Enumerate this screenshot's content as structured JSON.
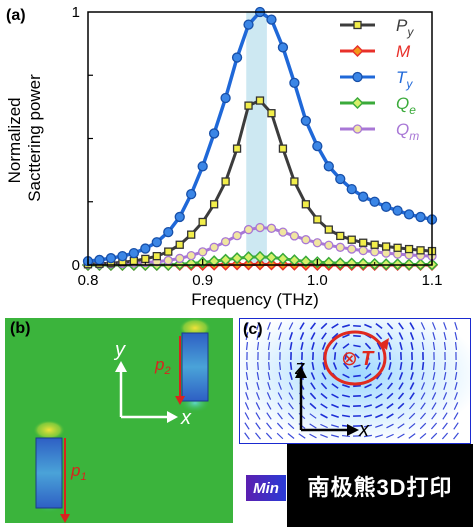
{
  "panels": {
    "a_label": "(a)",
    "b_label": "(b)",
    "c_label": "(c)"
  },
  "panel_b": {
    "p1_label": "p",
    "p1_sub": "1",
    "p2_label": "p",
    "p2_sub": "2",
    "axis_x": "x",
    "axis_y": "y"
  },
  "panel_c": {
    "axis_x": "x",
    "axis_z": "z",
    "toroidal_symbol": "⊗",
    "toroidal_label": "T"
  },
  "colorbar": {
    "min_label": "Min"
  },
  "watermark": "南极熊3D打印",
  "chart_data": {
    "type": "line",
    "xlabel": "Frequency (THz)",
    "ylabel": "Normalized Sacttering power",
    "xlim": [
      0.8,
      1.1
    ],
    "ylim": [
      0,
      1
    ],
    "xticks": [
      "0.8",
      "0.9",
      "1.0",
      "1.1"
    ],
    "yticks": [
      "0",
      "1"
    ],
    "highlight_band": [
      0.938,
      0.956
    ],
    "legend_position": "top-right",
    "x": [
      0.8,
      0.81,
      0.82,
      0.83,
      0.84,
      0.85,
      0.86,
      0.87,
      0.88,
      0.89,
      0.9,
      0.91,
      0.92,
      0.93,
      0.94,
      0.95,
      0.96,
      0.97,
      0.98,
      0.99,
      1.0,
      1.01,
      1.02,
      1.03,
      1.04,
      1.05,
      1.06,
      1.07,
      1.08,
      1.09,
      1.1
    ],
    "series": [
      {
        "name": "P_y",
        "legend_main": "P",
        "legend_sub": "y",
        "color": "#3c3c3c",
        "marker": "square",
        "marker_fill": "#f2ee4a",
        "values": [
          0.003,
          0.005,
          0.007,
          0.011,
          0.016,
          0.024,
          0.035,
          0.053,
          0.08,
          0.12,
          0.17,
          0.24,
          0.33,
          0.46,
          0.63,
          0.65,
          0.6,
          0.46,
          0.33,
          0.24,
          0.18,
          0.14,
          0.115,
          0.1,
          0.088,
          0.08,
          0.073,
          0.068,
          0.063,
          0.058,
          0.055
        ]
      },
      {
        "name": "M",
        "legend_main": "M",
        "legend_sub": "",
        "color": "#e8302a",
        "marker": "diamond",
        "marker_fill": "#f29a1a",
        "values": [
          0,
          0,
          0,
          0,
          0,
          0,
          0,
          0,
          0,
          0,
          0,
          0.001,
          0.001,
          0.002,
          0.002,
          0.002,
          0.002,
          0.001,
          0.001,
          0,
          0,
          0,
          0,
          0,
          0,
          0,
          0,
          0,
          0,
          0,
          0
        ]
      },
      {
        "name": "T_y",
        "legend_main": "T",
        "legend_sub": "y",
        "color": "#1f68d8",
        "marker": "circle",
        "marker_fill": "#3b86e6",
        "values": [
          0.015,
          0.02,
          0.027,
          0.035,
          0.047,
          0.065,
          0.09,
          0.13,
          0.19,
          0.28,
          0.39,
          0.52,
          0.66,
          0.82,
          0.95,
          1.0,
          0.97,
          0.86,
          0.72,
          0.57,
          0.47,
          0.39,
          0.34,
          0.3,
          0.27,
          0.25,
          0.23,
          0.215,
          0.2,
          0.19,
          0.18
        ]
      },
      {
        "name": "Q_e",
        "legend_main": "Q",
        "legend_sub": "e",
        "color": "#3aaa3a",
        "marker": "diamond",
        "marker_fill": "#d6f06a",
        "values": [
          0,
          0,
          0,
          0,
          0,
          0,
          0,
          0,
          0.003,
          0.006,
          0.01,
          0.015,
          0.021,
          0.027,
          0.031,
          0.032,
          0.03,
          0.025,
          0.019,
          0.014,
          0.011,
          0.009,
          0.007,
          0.006,
          0.005,
          0.004,
          0.003,
          0.003,
          0.002,
          0.002,
          0.002
        ]
      },
      {
        "name": "Q_m",
        "legend_main": "Q",
        "legend_sub": "m",
        "color": "#a877d6",
        "marker": "circle",
        "marker_fill": "#f0e6a0",
        "values": [
          0.003,
          0.004,
          0.005,
          0.006,
          0.008,
          0.01,
          0.013,
          0.018,
          0.026,
          0.037,
          0.052,
          0.07,
          0.092,
          0.116,
          0.14,
          0.148,
          0.145,
          0.13,
          0.115,
          0.1,
          0.088,
          0.078,
          0.07,
          0.063,
          0.057,
          0.052,
          0.047,
          0.043,
          0.04,
          0.037,
          0.035
        ]
      }
    ]
  }
}
